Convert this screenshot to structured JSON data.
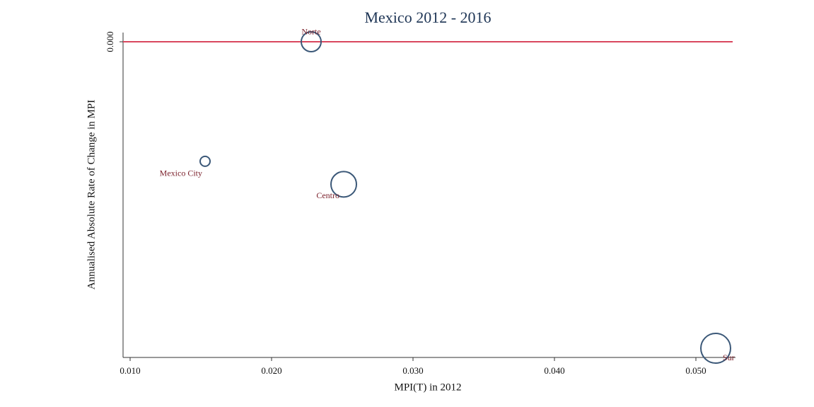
{
  "chart_data": {
    "type": "scatter",
    "title": "Mexico 2012 - 2016",
    "xlabel": "MPI(T) in 2012",
    "ylabel": "Annualised Absolute Rate of Change in MPI",
    "labels": [
      "Norte",
      "Mexico City",
      "Centro",
      "Sur"
    ],
    "x": [
      0.0228,
      0.0153,
      0.0251,
      0.0514
    ],
    "values": [
      0.0,
      -0.00234,
      -0.00279,
      -0.006
    ],
    "sizes": [
      196,
      49,
      324,
      441
    ],
    "color": "#3b5878",
    "label_color": "#7a1f2a",
    "xlim": [
      0.0095,
      0.0528
    ],
    "ylim": [
      -0.00618,
      0.00018
    ],
    "xticks": [
      {
        "value": 0.01,
        "label": "0.010"
      },
      {
        "value": 0.02,
        "label": "0.020"
      },
      {
        "value": 0.03,
        "label": "0.030"
      },
      {
        "value": 0.04,
        "label": "0.040"
      },
      {
        "value": 0.05,
        "label": "0.050"
      }
    ],
    "yticks": [
      {
        "value": 0,
        "label": "0.000"
      }
    ],
    "reference_line": {
      "y": 0,
      "color": "#d9475e"
    }
  }
}
